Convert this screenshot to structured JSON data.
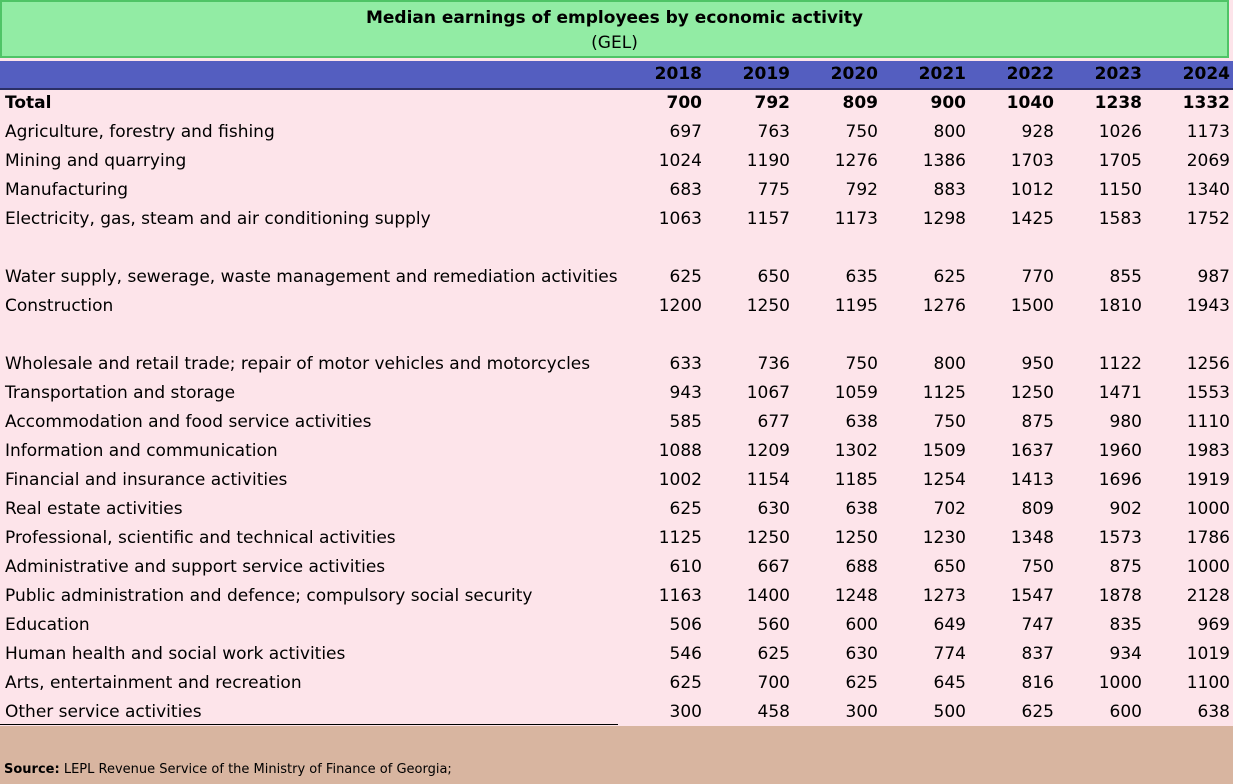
{
  "title": "Median earnings of employees by economic activity",
  "unit": "(GEL)",
  "years": [
    "2018",
    "2019",
    "2020",
    "2021",
    "2022",
    "2023",
    "2024"
  ],
  "rows": [
    {
      "name": "Total",
      "values": [
        "700",
        "792",
        "809",
        "900",
        "1040",
        "1238",
        "1332"
      ]
    },
    {
      "name": "Agriculture, forestry and fishing",
      "values": [
        "697",
        "763",
        "750",
        "800",
        "928",
        "1026",
        "1173"
      ]
    },
    {
      "name": "Mining and quarrying",
      "values": [
        "1024",
        "1190",
        "1276",
        "1386",
        "1703",
        "1705",
        "2069"
      ]
    },
    {
      "name": "Manufacturing",
      "values": [
        "683",
        "775",
        "792",
        "883",
        "1012",
        "1150",
        "1340"
      ]
    },
    {
      "name": "Electricity, gas, steam and air conditioning supply",
      "values": [
        "1063",
        "1157",
        "1173",
        "1298",
        "1425",
        "1583",
        "1752"
      ]
    },
    {
      "name": "Water supply, sewerage, waste management and remediation activities",
      "values": [
        "625",
        "650",
        "635",
        "625",
        "770",
        "855",
        "987"
      ]
    },
    {
      "name": "Construction",
      "values": [
        "1200",
        "1250",
        "1195",
        "1276",
        "1500",
        "1810",
        "1943"
      ]
    },
    {
      "name": "Wholesale and retail trade; repair of motor vehicles and motorcycles",
      "values": [
        "633",
        "736",
        "750",
        "800",
        "950",
        "1122",
        "1256"
      ]
    },
    {
      "name": "Transportation and storage",
      "values": [
        "943",
        "1067",
        "1059",
        "1125",
        "1250",
        "1471",
        "1553"
      ]
    },
    {
      "name": "Accommodation and food service activities",
      "values": [
        "585",
        "677",
        "638",
        "750",
        "875",
        "980",
        "1110"
      ]
    },
    {
      "name": "Information and communication",
      "values": [
        "1088",
        "1209",
        "1302",
        "1509",
        "1637",
        "1960",
        "1983"
      ]
    },
    {
      "name": "Financial and insurance activities",
      "values": [
        "1002",
        "1154",
        "1185",
        "1254",
        "1413",
        "1696",
        "1919"
      ]
    },
    {
      "name": "Real estate activities",
      "values": [
        "625",
        "630",
        "638",
        "702",
        "809",
        "902",
        "1000"
      ]
    },
    {
      "name": "Professional, scientific and technical activities",
      "values": [
        "1125",
        "1250",
        "1250",
        "1230",
        "1348",
        "1573",
        "1786"
      ]
    },
    {
      "name": "Administrative and support service activities",
      "values": [
        "610",
        "667",
        "688",
        "650",
        "750",
        "875",
        "1000"
      ]
    },
    {
      "name": "Public administration and defence; compulsory social security",
      "values": [
        "1163",
        "1400",
        "1248",
        "1273",
        "1547",
        "1878",
        "2128"
      ]
    },
    {
      "name": "Education",
      "values": [
        "506",
        "560",
        "600",
        "649",
        "747",
        "835",
        "969"
      ]
    },
    {
      "name": "Human health and social work activities",
      "values": [
        "546",
        "625",
        "630",
        "774",
        "837",
        "934",
        "1019"
      ]
    },
    {
      "name": "Arts, entertainment and recreation",
      "values": [
        "625",
        "700",
        "625",
        "645",
        "816",
        "1000",
        "1100"
      ]
    },
    {
      "name": "Other service activities",
      "values": [
        "300",
        "458",
        "300",
        "500",
        "625",
        "600",
        "638"
      ]
    }
  ],
  "source_label": "Source:",
  "source_text": " LEPL Revenue Service of the Ministry of Finance of Georgia;"
}
